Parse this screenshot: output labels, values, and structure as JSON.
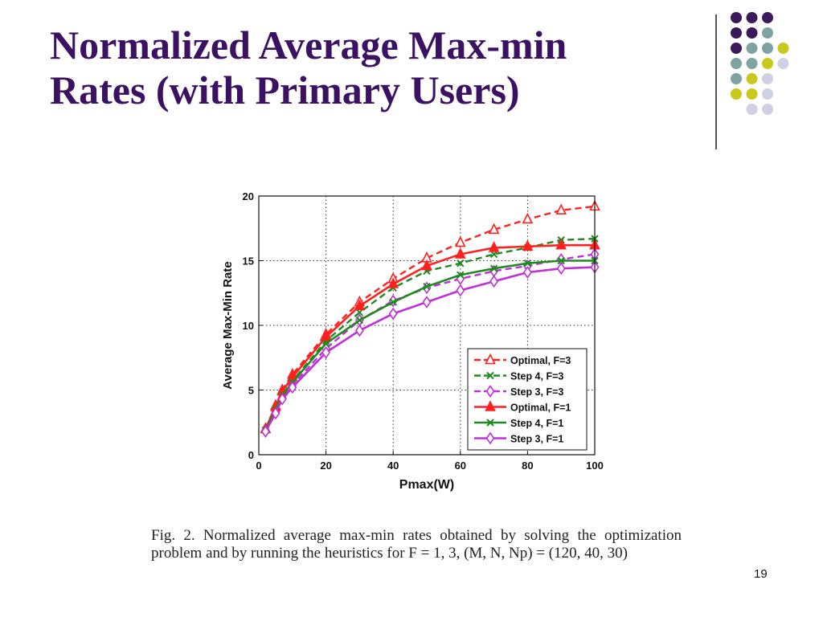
{
  "slide": {
    "title_line1": "Normalized Average Max-min",
    "title_line2": "Rates (with Primary Users)",
    "caption": "Fig. 2.   Normalized average max-min rates obtained by solving the optimization problem and by running the heuristics for F = 1, 3, (M, N, Np) = (120, 40, 30)",
    "page_number": "19"
  },
  "chart_data": {
    "type": "line",
    "title": "",
    "xlabel": "Pmax(W)",
    "ylabel": "Average Max-Min Rate",
    "xlim": [
      0,
      100
    ],
    "ylim": [
      0,
      20
    ],
    "xticks": [
      "0",
      "20",
      "40",
      "60",
      "80",
      "100"
    ],
    "yticks": [
      "0",
      "5",
      "10",
      "15",
      "20"
    ],
    "grid": true,
    "legend_position": "bottom-right",
    "x": [
      2,
      5,
      7,
      10,
      20,
      30,
      40,
      50,
      60,
      70,
      80,
      90,
      100
    ],
    "series": [
      {
        "name": "Optimal, F=3",
        "color": "#ff2020",
        "dashed": true,
        "marker": "triangle",
        "filled": false,
        "values": [
          2.0,
          3.8,
          5.0,
          6.2,
          9.3,
          11.8,
          13.6,
          15.2,
          16.4,
          17.4,
          18.2,
          18.9,
          19.2
        ]
      },
      {
        "name": "Step 4, F=3",
        "color": "#1f8a1f",
        "dashed": true,
        "marker": "x",
        "filled": false,
        "values": [
          1.9,
          3.5,
          4.6,
          5.7,
          8.8,
          11.0,
          12.9,
          14.2,
          14.8,
          15.5,
          16.0,
          16.6,
          16.7
        ]
      },
      {
        "name": "Step 3, F=3",
        "color": "#c030d8",
        "dashed": true,
        "marker": "diamond",
        "filled": false,
        "values": [
          1.8,
          3.3,
          4.4,
          5.4,
          8.2,
          10.4,
          11.9,
          12.9,
          13.6,
          14.2,
          14.6,
          15.1,
          15.5
        ]
      },
      {
        "name": "Optimal, F=1",
        "color": "#ff2020",
        "dashed": false,
        "marker": "triangle",
        "filled": true,
        "values": [
          2.0,
          3.7,
          4.9,
          6.0,
          9.1,
          11.5,
          13.2,
          14.6,
          15.5,
          16.0,
          16.1,
          16.2,
          16.2
        ]
      },
      {
        "name": "Step 4, F=1",
        "color": "#1f8a1f",
        "dashed": false,
        "marker": "x",
        "filled": false,
        "values": [
          1.9,
          3.5,
          4.6,
          5.6,
          8.6,
          10.4,
          11.8,
          13.0,
          13.9,
          14.4,
          14.8,
          15.0,
          15.0
        ]
      },
      {
        "name": "Step 3, F=1",
        "color": "#c030d8",
        "dashed": false,
        "marker": "diamond",
        "filled": false,
        "values": [
          1.8,
          3.2,
          4.3,
          5.2,
          7.9,
          9.6,
          10.9,
          11.8,
          12.7,
          13.4,
          14.1,
          14.4,
          14.5
        ]
      }
    ]
  },
  "decor": {
    "dot_colors": {
      "purple": "#3b1a5c",
      "teal": "#7fa3a3",
      "yellow": "#c8c81e",
      "lavender": "#d0d0e4"
    },
    "dot_grid": [
      [
        "purple",
        "purple",
        "purple",
        null
      ],
      [
        "purple",
        "purple",
        "teal",
        null
      ],
      [
        "purple",
        "teal",
        "teal",
        "yellow"
      ],
      [
        "teal",
        "teal",
        "yellow",
        "lavender"
      ],
      [
        "teal",
        "yellow",
        "lavender",
        null
      ],
      [
        "yellow",
        "yellow",
        "lavender",
        null
      ],
      [
        null,
        "lavender",
        "lavender",
        null
      ]
    ]
  }
}
